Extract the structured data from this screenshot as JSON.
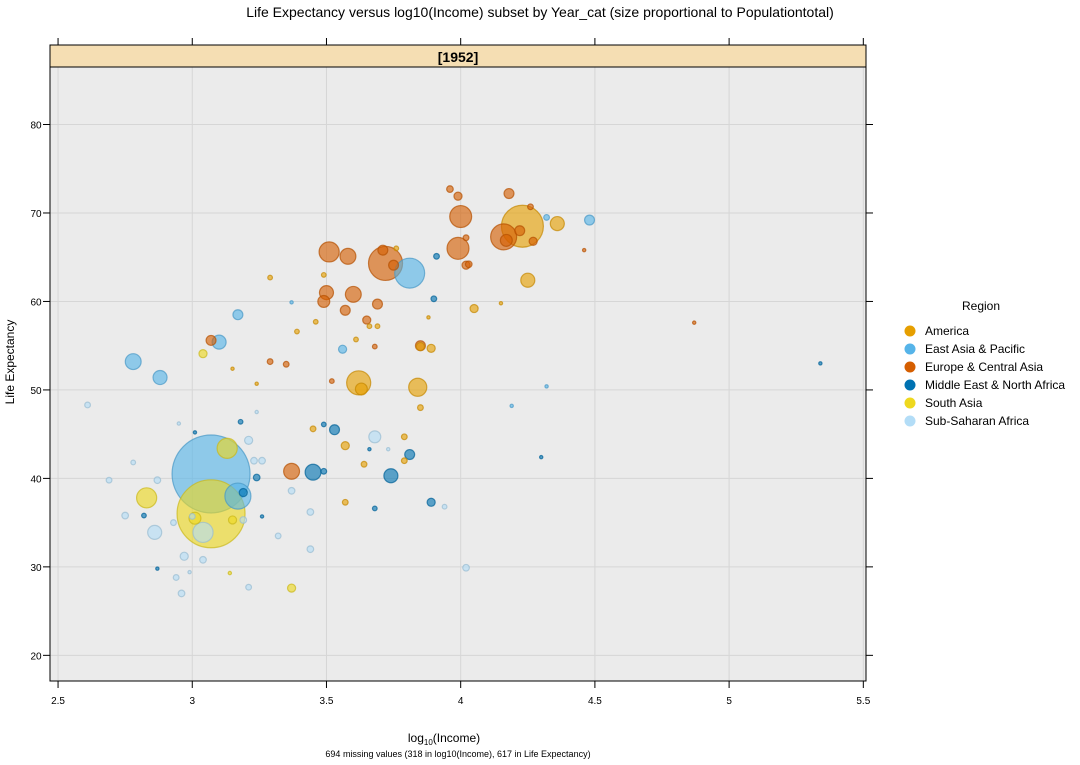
{
  "chart_data": {
    "type": "scatter",
    "title": "Life Expectancy versus log10(Income) subset by Year_cat (size proportional to Populationtotal)",
    "panel_label": "[1952]",
    "xlabel_base": "log",
    "xlabel_sub": "10",
    "xlabel_rest": "(Income)",
    "ylabel": "Life Expectancy",
    "footnote": "694 missing values (318 in log10(Income), 617 in Life Expectancy)",
    "xlim": [
      2.47,
      5.51
    ],
    "ylim": [
      17.1,
      86.5
    ],
    "x_ticks": [
      "2.5",
      "3",
      "3.5",
      "4",
      "4.5",
      "5",
      "5.5"
    ],
    "y_ticks": [
      "20",
      "30",
      "40",
      "50",
      "60",
      "70",
      "80"
    ],
    "grid": true,
    "size_variable": "Populationtotal (relative)",
    "legend": {
      "title": "Region",
      "placement": "right",
      "entries": [
        {
          "key": "A",
          "label": "America",
          "color": "#E69F00"
        },
        {
          "key": "E",
          "label": "East Asia & Pacific",
          "color": "#56B4E9"
        },
        {
          "key": "U",
          "label": "Europe & Central Asia",
          "color": "#D55E00"
        },
        {
          "key": "M",
          "label": "Middle East & North Africa",
          "color": "#0072B2"
        },
        {
          "key": "S",
          "label": "South Asia",
          "color": "#EED81E"
        },
        {
          "key": "F",
          "label": "Sub-Saharan Africa",
          "color": "#B3DDF7"
        }
      ]
    },
    "point_fields": [
      "log10_income",
      "life_expectancy",
      "region",
      "population_rel"
    ],
    "points": [
      [
        3.07,
        40.5,
        "E",
        557
      ],
      [
        3.07,
        36.0,
        "S",
        423
      ],
      [
        4.23,
        68.5,
        "A",
        161
      ],
      [
        3.72,
        64.3,
        "U",
        106
      ],
      [
        3.81,
        63.2,
        "E",
        82
      ],
      [
        4.16,
        67.3,
        "U",
        62
      ],
      [
        3.17,
        38.0,
        "E",
        62
      ],
      [
        3.62,
        50.8,
        "A",
        53
      ],
      [
        4.0,
        69.6,
        "U",
        44
      ],
      [
        3.99,
        66.0,
        "U",
        44
      ],
      [
        3.51,
        65.6,
        "U",
        37
      ],
      [
        2.83,
        37.8,
        "S",
        37
      ],
      [
        3.13,
        43.4,
        "S",
        37
      ],
      [
        3.04,
        33.9,
        "F",
        37
      ],
      [
        3.84,
        50.3,
        "A",
        30
      ],
      [
        3.58,
        65.1,
        "U",
        23
      ],
      [
        3.6,
        60.8,
        "U",
        23
      ],
      [
        3.37,
        40.8,
        "U",
        23
      ],
      [
        3.45,
        40.7,
        "M",
        23
      ],
      [
        2.78,
        53.2,
        "E",
        23
      ],
      [
        3.5,
        61.0,
        "U",
        18
      ],
      [
        3.1,
        55.4,
        "E",
        18
      ],
      [
        2.88,
        51.4,
        "E",
        18
      ],
      [
        3.74,
        40.3,
        "M",
        18
      ],
      [
        4.36,
        68.8,
        "A",
        18
      ],
      [
        4.25,
        62.4,
        "A",
        18
      ],
      [
        2.86,
        33.9,
        "F",
        18
      ],
      [
        3.63,
        50.1,
        "A",
        13
      ],
      [
        3.49,
        60.0,
        "U",
        13
      ],
      [
        3.01,
        35.5,
        "S",
        13
      ],
      [
        3.68,
        44.7,
        "F",
        13
      ],
      [
        4.17,
        66.9,
        "U",
        13
      ],
      [
        4.22,
        68.0,
        "U",
        9
      ],
      [
        3.57,
        59.0,
        "U",
        9
      ],
      [
        3.69,
        59.7,
        "U",
        9
      ],
      [
        3.85,
        55.0,
        "U",
        9
      ],
      [
        3.07,
        55.6,
        "U",
        9
      ],
      [
        3.17,
        58.5,
        "E",
        9
      ],
      [
        4.48,
        69.2,
        "E",
        9
      ],
      [
        3.71,
        65.8,
        "U",
        9
      ],
      [
        3.75,
        64.1,
        "U",
        9
      ],
      [
        4.18,
        72.2,
        "U",
        9
      ],
      [
        3.99,
        71.9,
        "U",
        6
      ],
      [
        3.53,
        45.5,
        "M",
        9
      ],
      [
        3.81,
        42.7,
        "M",
        9
      ],
      [
        3.57,
        43.7,
        "A",
        6
      ],
      [
        3.85,
        54.9,
        "A",
        6
      ],
      [
        3.89,
        54.7,
        "A",
        6
      ],
      [
        3.65,
        57.9,
        "U",
        6
      ],
      [
        3.56,
        54.6,
        "E",
        6
      ],
      [
        4.02,
        64.1,
        "U",
        6
      ],
      [
        4.05,
        59.2,
        "A",
        6
      ],
      [
        4.27,
        66.8,
        "U",
        6
      ],
      [
        3.21,
        44.3,
        "F",
        6
      ],
      [
        3.19,
        38.4,
        "M",
        6
      ],
      [
        3.04,
        54.1,
        "S",
        6
      ],
      [
        3.15,
        35.3,
        "S",
        6
      ],
      [
        3.37,
        27.6,
        "S",
        6
      ],
      [
        3.89,
        37.3,
        "M",
        6
      ],
      [
        2.97,
        31.2,
        "F",
        6
      ],
      [
        2.96,
        27.0,
        "F",
        4
      ],
      [
        3.04,
        30.8,
        "F",
        4
      ],
      [
        2.87,
        39.8,
        "F",
        4
      ],
      [
        2.75,
        35.8,
        "F",
        4
      ],
      [
        3.23,
        42.0,
        "F",
        4
      ],
      [
        3.26,
        42.0,
        "F",
        4
      ],
      [
        3.44,
        36.2,
        "F",
        4
      ],
      [
        3.37,
        38.6,
        "F",
        4
      ],
      [
        3.44,
        32.0,
        "F",
        4
      ],
      [
        4.02,
        29.9,
        "F",
        4
      ],
      [
        3.19,
        35.3,
        "F",
        4
      ],
      [
        3.24,
        40.1,
        "M",
        4
      ],
      [
        3.96,
        72.7,
        "U",
        4
      ],
      [
        4.03,
        64.2,
        "U",
        4
      ],
      [
        4.26,
        70.7,
        "U",
        3
      ],
      [
        4.02,
        67.2,
        "U",
        3
      ],
      [
        4.32,
        69.5,
        "E",
        3
      ],
      [
        3.29,
        53.2,
        "U",
        3
      ],
      [
        3.35,
        52.9,
        "U",
        3
      ],
      [
        3.45,
        45.6,
        "A",
        3
      ],
      [
        3.64,
        41.6,
        "A",
        3
      ],
      [
        3.79,
        44.7,
        "A",
        3
      ],
      [
        3.79,
        42.0,
        "A",
        3
      ],
      [
        3.57,
        37.3,
        "A",
        3
      ],
      [
        3.85,
        48.0,
        "A",
        3
      ],
      [
        3.49,
        40.8,
        "M",
        3
      ],
      [
        3.9,
        60.3,
        "M",
        3
      ],
      [
        3.91,
        65.1,
        "M",
        3
      ],
      [
        2.69,
        39.8,
        "F",
        3
      ],
      [
        2.61,
        48.3,
        "F",
        3
      ],
      [
        2.78,
        41.8,
        "F",
        2
      ],
      [
        2.93,
        35.0,
        "F",
        3
      ],
      [
        2.94,
        28.8,
        "F",
        3
      ],
      [
        3.0,
        35.7,
        "F",
        3
      ],
      [
        3.21,
        27.7,
        "F",
        3
      ],
      [
        3.32,
        33.5,
        "F",
        3
      ],
      [
        3.29,
        62.7,
        "A",
        2
      ],
      [
        3.49,
        63.0,
        "A",
        2
      ],
      [
        3.76,
        66.0,
        "A",
        2
      ],
      [
        3.66,
        57.2,
        "A",
        2
      ],
      [
        3.46,
        57.7,
        "A",
        2
      ],
      [
        3.39,
        56.6,
        "A",
        2
      ],
      [
        3.69,
        57.2,
        "A",
        2
      ],
      [
        3.61,
        55.7,
        "A",
        2
      ],
      [
        3.52,
        51.0,
        "U",
        2
      ],
      [
        3.68,
        54.9,
        "U",
        2
      ],
      [
        3.49,
        46.1,
        "M",
        2
      ],
      [
        3.68,
        36.6,
        "M",
        2
      ],
      [
        2.82,
        35.8,
        "M",
        2
      ],
      [
        3.18,
        46.4,
        "M",
        2
      ],
      [
        3.94,
        36.8,
        "F",
        2
      ],
      [
        4.87,
        57.6,
        "U",
        1
      ],
      [
        4.46,
        65.8,
        "U",
        1
      ],
      [
        5.34,
        53.0,
        "M",
        1
      ],
      [
        4.3,
        42.4,
        "M",
        1
      ],
      [
        4.19,
        48.2,
        "E",
        1
      ],
      [
        4.32,
        50.4,
        "E",
        1
      ],
      [
        3.37,
        59.9,
        "E",
        1
      ],
      [
        3.24,
        50.7,
        "A",
        1
      ],
      [
        3.15,
        52.4,
        "A",
        1
      ],
      [
        3.88,
        58.2,
        "A",
        1
      ],
      [
        4.15,
        59.8,
        "A",
        1
      ],
      [
        3.01,
        45.2,
        "M",
        1
      ],
      [
        3.26,
        35.7,
        "M",
        1
      ],
      [
        2.87,
        29.8,
        "M",
        1
      ],
      [
        2.99,
        29.4,
        "F",
        1
      ],
      [
        3.14,
        29.3,
        "S",
        1
      ],
      [
        2.95,
        46.2,
        "F",
        1
      ],
      [
        3.24,
        47.5,
        "F",
        1
      ],
      [
        3.66,
        43.3,
        "M",
        1
      ],
      [
        3.73,
        43.3,
        "F",
        1
      ]
    ]
  }
}
